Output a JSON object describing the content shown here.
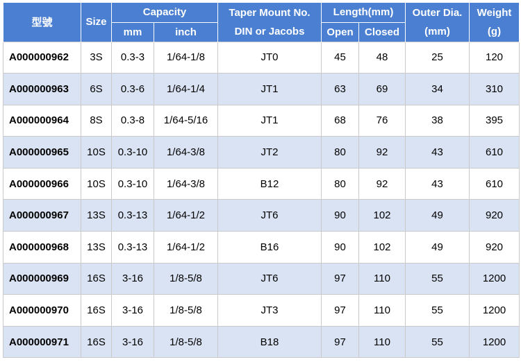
{
  "header": {
    "row1": [
      "型號",
      "Size",
      "Capacity",
      "Taper Mount No.",
      "Length(mm)",
      "Outer Dia.",
      "Weight"
    ],
    "row2": [
      "mm",
      "inch",
      "DIN or Jacobs",
      "Open",
      "Closed",
      "(mm)",
      "(g)"
    ]
  },
  "table": {
    "rows": [
      [
        "A000000962",
        "3S",
        "0.3-3",
        "1/64-1/8",
        "JT0",
        "45",
        "48",
        "25",
        "120"
      ],
      [
        "A000000963",
        "6S",
        "0.3-6",
        "1/64-1/4",
        "JT1",
        "63",
        "69",
        "34",
        "310"
      ],
      [
        "A000000964",
        "8S",
        "0.3-8",
        "1/64-5/16",
        "JT1",
        "68",
        "76",
        "38",
        "395"
      ],
      [
        "A000000965",
        "10S",
        "0.3-10",
        "1/64-3/8",
        "JT2",
        "80",
        "92",
        "43",
        "610"
      ],
      [
        "A000000966",
        "10S",
        "0.3-10",
        "1/64-3/8",
        "B12",
        "80",
        "92",
        "43",
        "610"
      ],
      [
        "A000000967",
        "13S",
        "0.3-13",
        "1/64-1/2",
        "JT6",
        "90",
        "102",
        "49",
        "920"
      ],
      [
        "A000000968",
        "13S",
        "0.3-13",
        "1/64-1/2",
        "B16",
        "90",
        "102",
        "49",
        "920"
      ],
      [
        "A000000969",
        "16S",
        "3-16",
        "1/8-5/8",
        "JT6",
        "97",
        "110",
        "55",
        "1200"
      ],
      [
        "A000000970",
        "16S",
        "3-16",
        "1/8-5/8",
        "JT3",
        "97",
        "110",
        "55",
        "1200"
      ],
      [
        "A000000971",
        "16S",
        "3-16",
        "1/8-5/8",
        "B18",
        "97",
        "110",
        "55",
        "1200"
      ]
    ]
  }
}
